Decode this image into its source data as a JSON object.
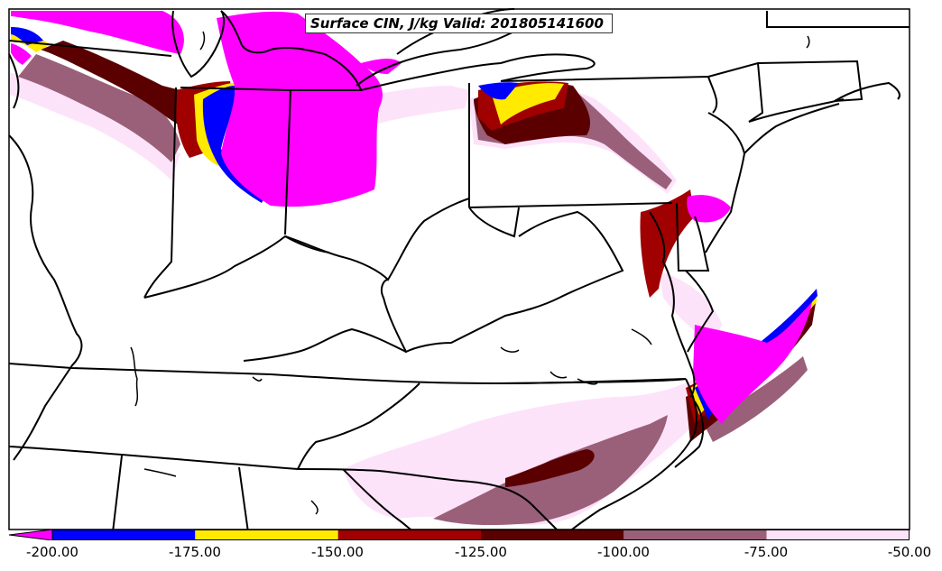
{
  "title": "Surface CIN, J/kg Valid: 201805141600",
  "colorbar": {
    "ticks": [
      "-200.00",
      "-175.00",
      "-150.00",
      "-125.00",
      "-100.00",
      "-75.00",
      "-50.00"
    ],
    "segments": [
      {
        "from": -200,
        "to": -175,
        "color": "#0000ff"
      },
      {
        "from": -175,
        "to": -150,
        "color": "#ffea00"
      },
      {
        "from": -150,
        "to": -125,
        "color": "#a00000"
      },
      {
        "from": -125,
        "to": -100,
        "color": "#5a0000"
      },
      {
        "from": -100,
        "to": -75,
        "color": "#9a607a"
      },
      {
        "from": -75,
        "to": -50,
        "color": "#fde3fa"
      }
    ],
    "under_color": "#ff00ff"
  },
  "colors": {
    "magenta": "#ff00ff",
    "blue": "#0000ff",
    "yellow": "#ffea00",
    "red": "#a00000",
    "darkred": "#5a0000",
    "mauve": "#9a607a",
    "pink": "#fde3fa"
  }
}
